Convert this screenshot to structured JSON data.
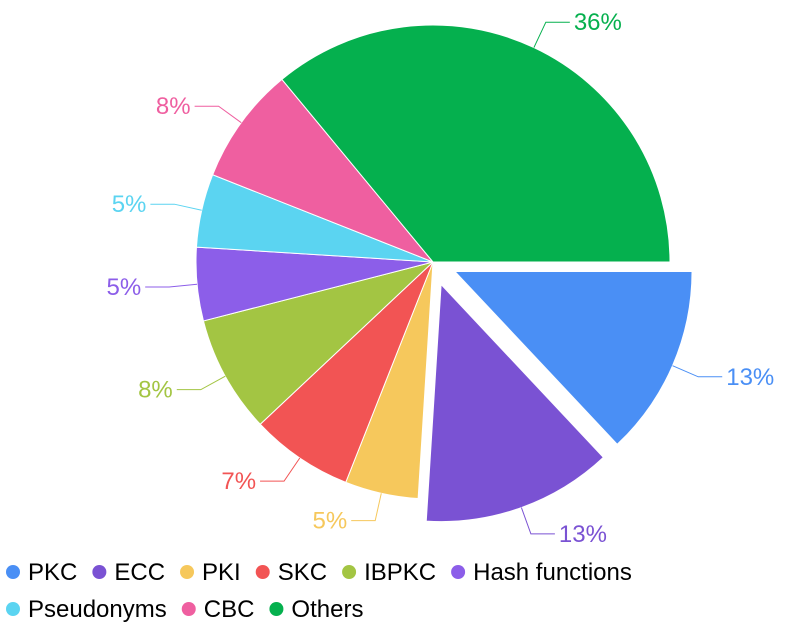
{
  "chart_data": {
    "type": "pie",
    "title": "",
    "legend_position": "bottom-left",
    "slices": [
      {
        "name": "PKC",
        "label": "13%",
        "value": 13,
        "color": "#4a8ff5",
        "exploded": true
      },
      {
        "name": "ECC",
        "label": "13%",
        "value": 13,
        "color": "#7a52d3",
        "exploded": true
      },
      {
        "name": "PKI",
        "label": "5%",
        "value": 5,
        "color": "#f6c85c",
        "exploded": false
      },
      {
        "name": "SKC",
        "label": "7%",
        "value": 7,
        "color": "#f25454",
        "exploded": false
      },
      {
        "name": "IBPKC",
        "label": "8%",
        "value": 8,
        "color": "#a3c543",
        "exploded": false
      },
      {
        "name": "Hash functions",
        "label": "5%",
        "value": 5,
        "color": "#8c5ee9",
        "exploded": false
      },
      {
        "name": "Pseudonyms",
        "label": "5%",
        "value": 5,
        "color": "#5bd4f1",
        "exploded": false
      },
      {
        "name": "CBC",
        "label": "8%",
        "value": 8,
        "color": "#ef5fa0",
        "exploded": false
      },
      {
        "name": "Others",
        "label": "36%",
        "value": 36,
        "color": "#05b04e",
        "exploded": false
      }
    ]
  }
}
